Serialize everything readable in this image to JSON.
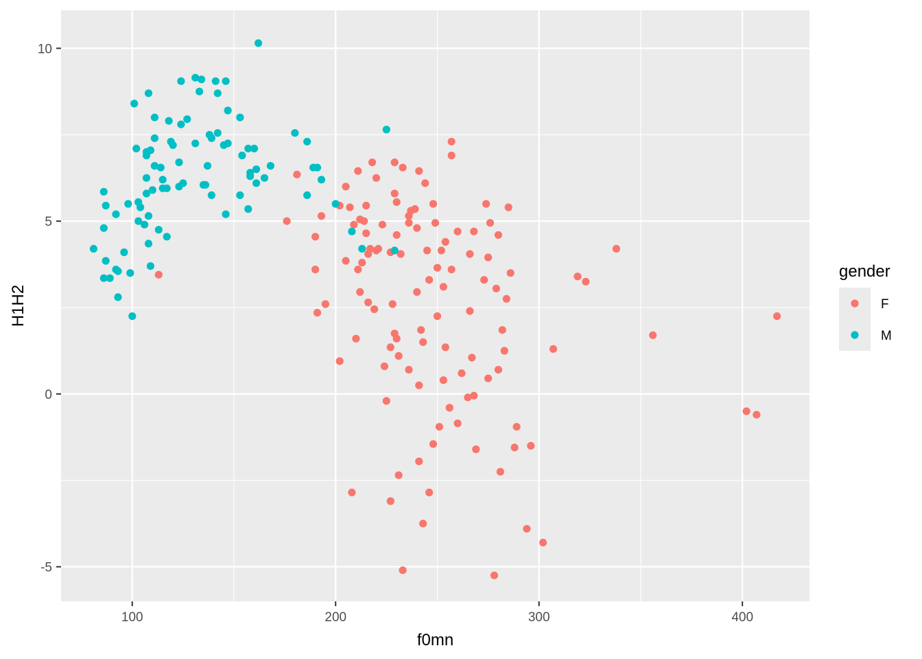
{
  "chart_data": {
    "type": "scatter",
    "title": "",
    "xlabel": "f0mn",
    "ylabel": "H1H2",
    "xlim": [
      65,
      433
    ],
    "ylim": [
      -6,
      11.1
    ],
    "x_ticks": [
      100,
      200,
      300,
      400
    ],
    "x_minor": [
      150,
      250,
      350
    ],
    "y_ticks": [
      -5,
      0,
      5,
      10
    ],
    "y_minor": [
      -2.5,
      2.5,
      7.5
    ],
    "x_tick_labels": [
      "100",
      "200",
      "300",
      "400"
    ],
    "y_tick_labels": [
      "-5",
      "0",
      "5",
      "10"
    ],
    "grid": true,
    "legend": {
      "title": "gender",
      "placement": "right"
    },
    "colors": {
      "panel": "#ebebeb",
      "grid": "#ffffff",
      "F": "#f8766d",
      "M": "#00bfc4",
      "legend_key_bg": "#ebebeb"
    },
    "series": [
      {
        "name": "F",
        "color": "#f8766d",
        "points": [
          [
            113,
            3.45
          ],
          [
            176,
            5.0
          ],
          [
            181,
            6.35
          ],
          [
            190,
            4.55
          ],
          [
            190,
            3.6
          ],
          [
            191,
            2.35
          ],
          [
            193,
            5.15
          ],
          [
            195,
            2.6
          ],
          [
            202,
            5.45
          ],
          [
            202,
            0.95
          ],
          [
            205,
            3.85
          ],
          [
            205,
            6.0
          ],
          [
            207,
            5.4
          ],
          [
            208,
            -2.85
          ],
          [
            209,
            4.9
          ],
          [
            210,
            1.6
          ],
          [
            211,
            3.6
          ],
          [
            211,
            6.45
          ],
          [
            212,
            5.05
          ],
          [
            212,
            2.95
          ],
          [
            213,
            3.8
          ],
          [
            214,
            5.0
          ],
          [
            215,
            5.45
          ],
          [
            215,
            4.65
          ],
          [
            216,
            4.05
          ],
          [
            216,
            2.65
          ],
          [
            217,
            4.2
          ],
          [
            218,
            6.7
          ],
          [
            219,
            2.45
          ],
          [
            220,
            4.15
          ],
          [
            220,
            6.25
          ],
          [
            221,
            4.2
          ],
          [
            223,
            4.9
          ],
          [
            224,
            0.8
          ],
          [
            225,
            -0.2
          ],
          [
            227,
            1.35
          ],
          [
            227,
            4.1
          ],
          [
            227,
            -3.1
          ],
          [
            228,
            2.6
          ],
          [
            229,
            6.7
          ],
          [
            229,
            5.8
          ],
          [
            229,
            1.75
          ],
          [
            230,
            1.6
          ],
          [
            230,
            4.6
          ],
          [
            230,
            5.55
          ],
          [
            231,
            1.1
          ],
          [
            231,
            -2.35
          ],
          [
            232,
            4.05
          ],
          [
            233,
            6.55
          ],
          [
            233,
            -5.1
          ],
          [
            236,
            0.7
          ],
          [
            236,
            5.15
          ],
          [
            236,
            4.95
          ],
          [
            237,
            5.3
          ],
          [
            239,
            5.35
          ],
          [
            240,
            2.95
          ],
          [
            240,
            4.8
          ],
          [
            241,
            -1.95
          ],
          [
            241,
            0.25
          ],
          [
            241,
            6.45
          ],
          [
            242,
            1.85
          ],
          [
            243,
            1.5
          ],
          [
            243,
            -3.75
          ],
          [
            244,
            6.1
          ],
          [
            245,
            4.15
          ],
          [
            246,
            3.3
          ],
          [
            246,
            -2.85
          ],
          [
            248,
            -1.45
          ],
          [
            248,
            5.5
          ],
          [
            249,
            4.95
          ],
          [
            250,
            3.65
          ],
          [
            250,
            2.25
          ],
          [
            251,
            -0.95
          ],
          [
            252,
            4.15
          ],
          [
            253,
            0.4
          ],
          [
            253,
            3.1
          ],
          [
            254,
            1.35
          ],
          [
            254,
            4.4
          ],
          [
            256,
            -0.4
          ],
          [
            257,
            3.6
          ],
          [
            257,
            7.3
          ],
          [
            257,
            6.9
          ],
          [
            260,
            4.7
          ],
          [
            260,
            -0.85
          ],
          [
            262,
            0.6
          ],
          [
            265,
            -0.1
          ],
          [
            266,
            4.05
          ],
          [
            266,
            2.4
          ],
          [
            267,
            1.05
          ],
          [
            268,
            -0.05
          ],
          [
            268,
            4.7
          ],
          [
            269,
            -1.6
          ],
          [
            273,
            3.3
          ],
          [
            274,
            5.5
          ],
          [
            275,
            0.45
          ],
          [
            275,
            3.95
          ],
          [
            276,
            4.95
          ],
          [
            278,
            -5.25
          ],
          [
            279,
            3.05
          ],
          [
            280,
            0.7
          ],
          [
            280,
            4.6
          ],
          [
            281,
            -2.25
          ],
          [
            282,
            1.85
          ],
          [
            283,
            1.25
          ],
          [
            284,
            2.75
          ],
          [
            285,
            5.4
          ],
          [
            286,
            3.5
          ],
          [
            288,
            -1.55
          ],
          [
            289,
            -0.95
          ],
          [
            294,
            -3.9
          ],
          [
            296,
            -1.5
          ],
          [
            302,
            -4.3
          ],
          [
            307,
            1.3
          ],
          [
            319,
            3.4
          ],
          [
            323,
            3.25
          ],
          [
            338,
            4.2
          ],
          [
            356,
            1.7
          ],
          [
            402,
            -0.5
          ],
          [
            407,
            -0.6
          ],
          [
            417,
            2.25
          ]
        ]
      },
      {
        "name": "M",
        "color": "#00bfc4",
        "points": [
          [
            81,
            4.2
          ],
          [
            86,
            5.85
          ],
          [
            86,
            4.8
          ],
          [
            86,
            3.35
          ],
          [
            87,
            5.45
          ],
          [
            87,
            3.85
          ],
          [
            89,
            3.35
          ],
          [
            92,
            5.2
          ],
          [
            92,
            3.6
          ],
          [
            93,
            2.8
          ],
          [
            93,
            3.55
          ],
          [
            96,
            4.1
          ],
          [
            98,
            5.5
          ],
          [
            99,
            3.5
          ],
          [
            100,
            2.25
          ],
          [
            101,
            8.4
          ],
          [
            102,
            7.1
          ],
          [
            103,
            5.55
          ],
          [
            103,
            5.0
          ],
          [
            104,
            5.4
          ],
          [
            106,
            4.9
          ],
          [
            107,
            7.0
          ],
          [
            107,
            6.9
          ],
          [
            107,
            5.8
          ],
          [
            107,
            6.25
          ],
          [
            108,
            8.7
          ],
          [
            108,
            4.35
          ],
          [
            108,
            5.15
          ],
          [
            109,
            3.7
          ],
          [
            109,
            7.05
          ],
          [
            110,
            5.9
          ],
          [
            111,
            6.6
          ],
          [
            111,
            7.4
          ],
          [
            111,
            8.0
          ],
          [
            113,
            4.75
          ],
          [
            114,
            6.55
          ],
          [
            115,
            5.95
          ],
          [
            115,
            6.2
          ],
          [
            117,
            4.55
          ],
          [
            117,
            5.95
          ],
          [
            118,
            7.9
          ],
          [
            119,
            7.3
          ],
          [
            120,
            7.2
          ],
          [
            123,
            6.0
          ],
          [
            123,
            6.7
          ],
          [
            124,
            7.8
          ],
          [
            124,
            9.05
          ],
          [
            125,
            6.1
          ],
          [
            127,
            7.95
          ],
          [
            131,
            7.25
          ],
          [
            131,
            9.15
          ],
          [
            133,
            8.75
          ],
          [
            134,
            9.1
          ],
          [
            135,
            6.05
          ],
          [
            136,
            6.05
          ],
          [
            137,
            6.6
          ],
          [
            138,
            7.5
          ],
          [
            139,
            7.4
          ],
          [
            139,
            5.75
          ],
          [
            141,
            9.05
          ],
          [
            142,
            7.55
          ],
          [
            142,
            8.7
          ],
          [
            145,
            7.2
          ],
          [
            146,
            9.05
          ],
          [
            146,
            5.2
          ],
          [
            147,
            7.25
          ],
          [
            147,
            8.2
          ],
          [
            153,
            8.0
          ],
          [
            153,
            5.75
          ],
          [
            154,
            6.9
          ],
          [
            157,
            5.35
          ],
          [
            157,
            7.1
          ],
          [
            158,
            6.3
          ],
          [
            158,
            6.4
          ],
          [
            160,
            7.1
          ],
          [
            161,
            6.1
          ],
          [
            161,
            6.5
          ],
          [
            162,
            10.15
          ],
          [
            165,
            6.25
          ],
          [
            168,
            6.6
          ],
          [
            180,
            7.55
          ],
          [
            186,
            7.3
          ],
          [
            186,
            5.75
          ],
          [
            189,
            6.55
          ],
          [
            191,
            6.55
          ],
          [
            193,
            6.2
          ],
          [
            200,
            5.5
          ],
          [
            208,
            4.7
          ],
          [
            213,
            4.2
          ],
          [
            225,
            7.65
          ],
          [
            229,
            4.15
          ]
        ]
      }
    ]
  }
}
